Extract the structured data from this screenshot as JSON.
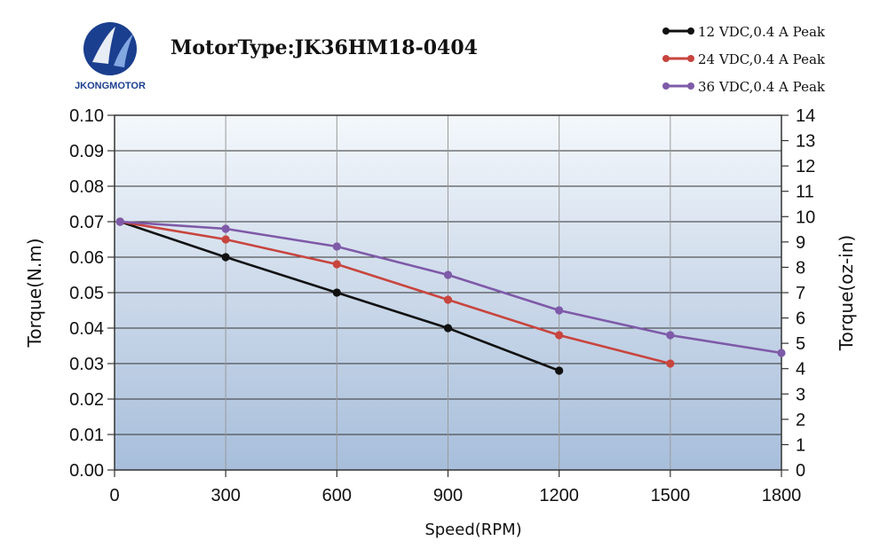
{
  "brand": {
    "name": "JKONGMOTOR",
    "colors": {
      "primary": "#1b3f8f",
      "accent": "#2a62c9"
    }
  },
  "chart_data": {
    "type": "line",
    "title": "MotorType:JK36HM18-0404",
    "xlabel": "Speed(RPM)",
    "ylabel": "Torque(N.m)",
    "y2label": "Torque(oz-in)",
    "xlim": [
      0,
      1800
    ],
    "ylim": [
      0,
      0.1
    ],
    "y2lim": [
      0,
      14
    ],
    "x_ticks": [
      0,
      300,
      600,
      900,
      1200,
      1500,
      1800
    ],
    "y_ticks": [
      "0.00",
      "0.01",
      "0.02",
      "0.03",
      "0.04",
      "0.05",
      "0.06",
      "0.07",
      "0.08",
      "0.09",
      "0.10"
    ],
    "y2_ticks": [
      "0",
      "1",
      "2",
      "3",
      "4",
      "5",
      "6",
      "7",
      "8",
      "9",
      "10",
      "11",
      "12",
      "13",
      "14"
    ],
    "grid": true,
    "legend_position": "top-right",
    "series": [
      {
        "name": "12 VDC,0.4 A Peak",
        "color": "#111111",
        "x": [
          15,
          300,
          600,
          900,
          1200
        ],
        "y": [
          0.07,
          0.06,
          0.05,
          0.04,
          0.028
        ]
      },
      {
        "name": "24 VDC,0.4 A Peak",
        "color": "#c8453e",
        "x": [
          15,
          300,
          600,
          900,
          1200,
          1500
        ],
        "y": [
          0.07,
          0.065,
          0.058,
          0.048,
          0.038,
          0.03
        ]
      },
      {
        "name": "36 VDC,0.4 A Peak",
        "color": "#7e5aa8",
        "x": [
          15,
          300,
          600,
          900,
          1200,
          1500,
          1800
        ],
        "y": [
          0.07,
          0.068,
          0.063,
          0.055,
          0.045,
          0.038,
          0.033
        ]
      }
    ]
  }
}
